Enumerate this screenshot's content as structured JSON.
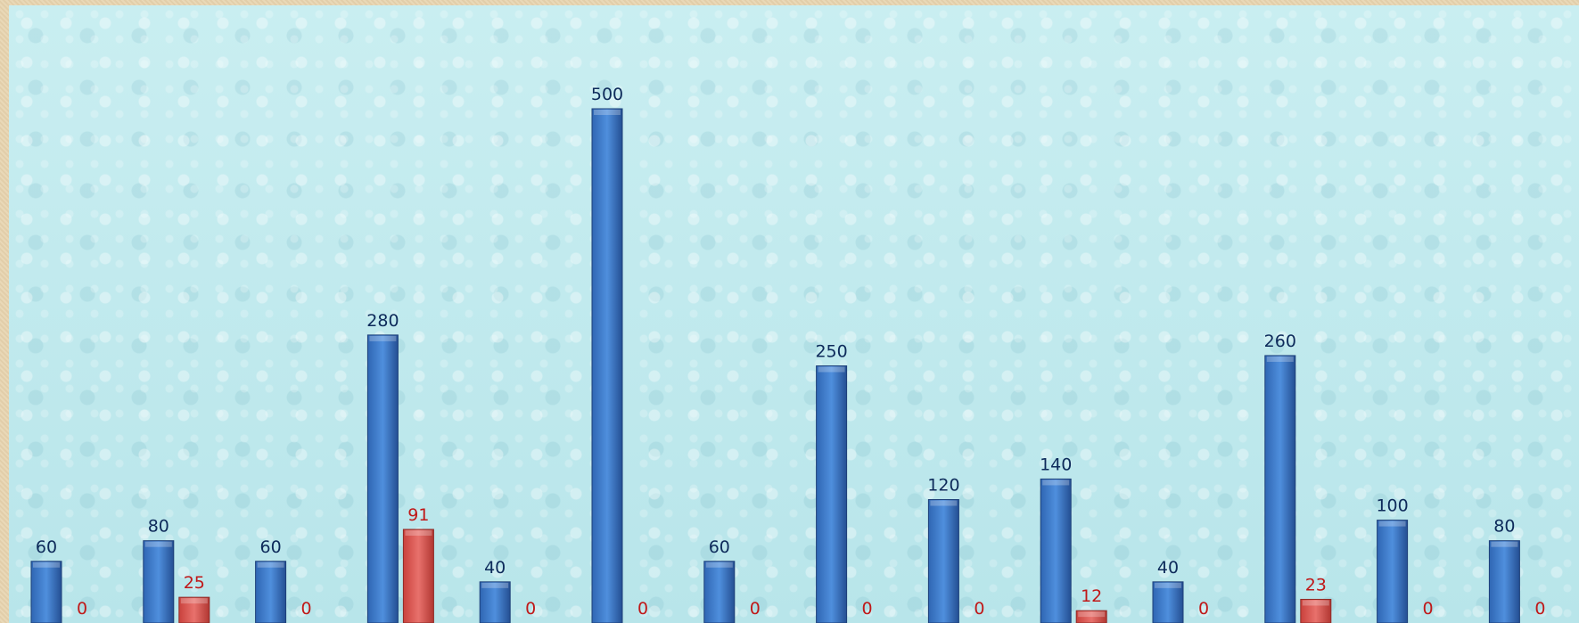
{
  "chart_data": {
    "type": "bar",
    "categories": [
      "",
      "",
      "",
      "",
      "",
      "",
      "",
      "",
      "",
      "",
      "",
      "",
      "",
      ""
    ],
    "series": [
      {
        "values": [
          60,
          80,
          60,
          280,
          40,
          500,
          60,
          250,
          120,
          140,
          40,
          260,
          100,
          80
        ],
        "labels": [
          "60",
          "80",
          "60",
          "280",
          "40",
          "500",
          "60",
          "250",
          "120",
          "140",
          "40",
          "260",
          "100",
          "80"
        ],
        "color": "#3a78c8"
      },
      {
        "values": [
          0,
          25,
          0,
          91,
          0,
          0,
          0,
          0,
          0,
          12,
          0,
          23,
          0,
          0
        ],
        "labels": [
          "0",
          "25",
          "0",
          "91",
          "0",
          "0",
          "0",
          "0",
          "0",
          "12",
          "0",
          "23",
          "0",
          "0"
        ],
        "color": "#d9534f"
      }
    ],
    "ylim": [
      0,
      600
    ],
    "grid": false,
    "legend": "none",
    "background": "water-droplets"
  }
}
